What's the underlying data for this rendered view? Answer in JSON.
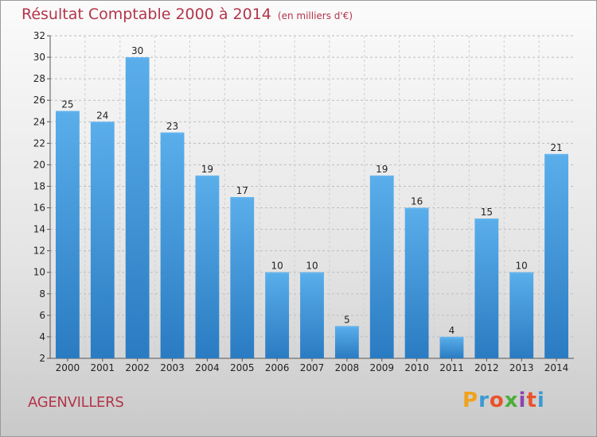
{
  "chart_data": {
    "type": "bar",
    "title": "Résultat Comptable 2000 à 2014",
    "subtitle": "(en milliers d'€)",
    "categories": [
      "2000",
      "2001",
      "2002",
      "2003",
      "2004",
      "2005",
      "2006",
      "2007",
      "2008",
      "2009",
      "2010",
      "2011",
      "2012",
      "2013",
      "2014"
    ],
    "values": [
      25,
      24,
      30,
      23,
      19,
      17,
      10,
      10,
      5,
      19,
      16,
      4,
      15,
      10,
      21
    ],
    "ylim": [
      2,
      32
    ],
    "yticks": [
      2,
      4,
      6,
      8,
      10,
      12,
      14,
      16,
      18,
      20,
      22,
      24,
      26,
      28,
      30,
      32
    ],
    "grid": true,
    "bar_color": "#4a9fe0",
    "bar_color_light": "#62b4ee",
    "bar_color_dark": "#2a7ec6"
  },
  "location": "AGENVILLERS",
  "logo": {
    "letters": [
      "P",
      "r",
      "o",
      "x",
      "i",
      "t",
      "i"
    ],
    "colors": [
      "#f0a21c",
      "#3a9ad6",
      "#e8532a",
      "#4cae3a",
      "#8e44ad",
      "#e8532a",
      "#3a9ad6"
    ]
  }
}
